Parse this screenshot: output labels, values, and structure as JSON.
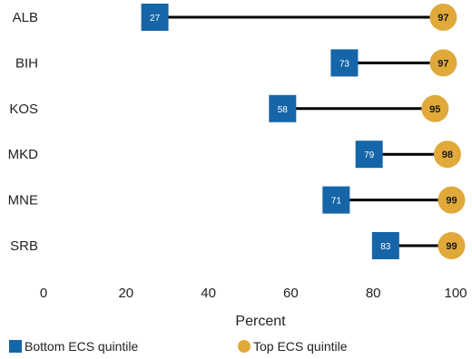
{
  "chart_data": {
    "type": "dumbbell",
    "categories": [
      "ALB",
      "BIH",
      "KOS",
      "MKD",
      "MNE",
      "SRB"
    ],
    "series": [
      {
        "name": "Bottom ECS quintile",
        "values": [
          27,
          73,
          58,
          79,
          71,
          83
        ],
        "color": "#1565a8",
        "marker": "square"
      },
      {
        "name": "Top ECS quintile",
        "values": [
          97,
          97,
          95,
          98,
          99,
          99
        ],
        "color": "#e0a93a",
        "marker": "circle"
      }
    ],
    "title": "",
    "xlabel": "Percent",
    "ylabel": "",
    "xlim": [
      0,
      100
    ],
    "xticks": [
      0,
      20,
      40,
      60,
      80,
      100
    ],
    "grid": false,
    "legend": "bottom",
    "connector_color": "#000000"
  }
}
